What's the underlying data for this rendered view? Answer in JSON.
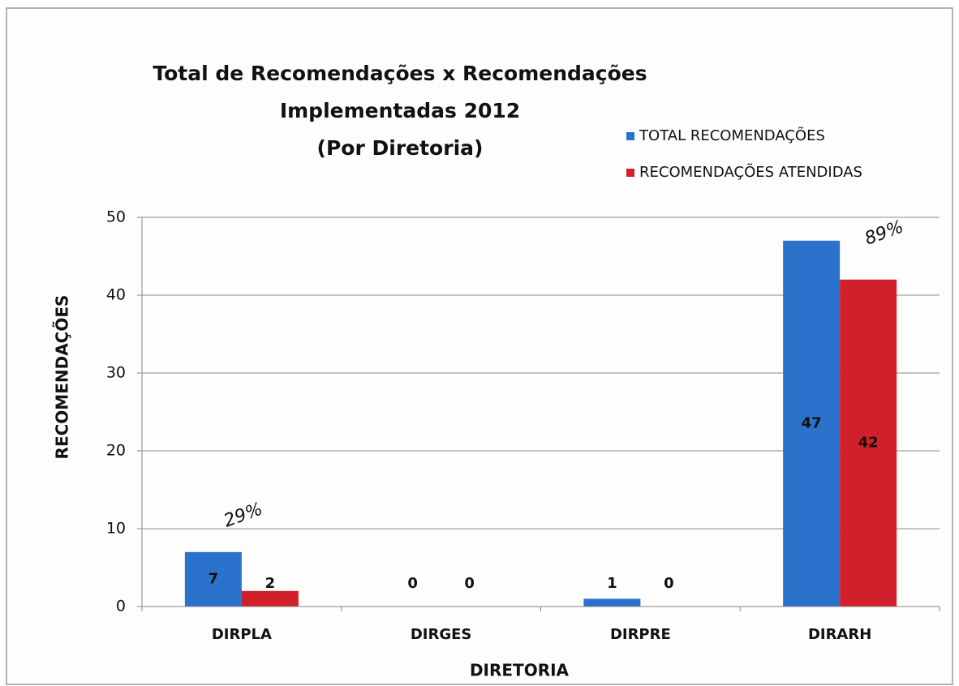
{
  "chart_data": {
    "type": "bar",
    "title": [
      "Total de Recomendações x Recomendações",
      "Implementadas 2012",
      "(Por Diretoria)"
    ],
    "x_label": "DIRETORIA",
    "y_label": "RECOMENDAÇÕES",
    "categories": [
      "DIRPLA",
      "DIRGES",
      "DIRPRE",
      "DIRARH"
    ],
    "series": [
      {
        "name": "TOTAL RECOMENDAÇÕES",
        "color": "#2a72cc",
        "values": [
          7,
          0,
          1,
          47
        ]
      },
      {
        "name": "RECOMENDAÇÕES ATENDIDAS",
        "color": "#d21f2c",
        "values": [
          2,
          0,
          0,
          42
        ]
      }
    ],
    "annotations": [
      "29%",
      "89%"
    ],
    "ylim": [
      0,
      50
    ],
    "yticks": [
      0,
      10,
      20,
      30,
      40,
      50
    ],
    "grid": true,
    "legend": "top-right"
  }
}
